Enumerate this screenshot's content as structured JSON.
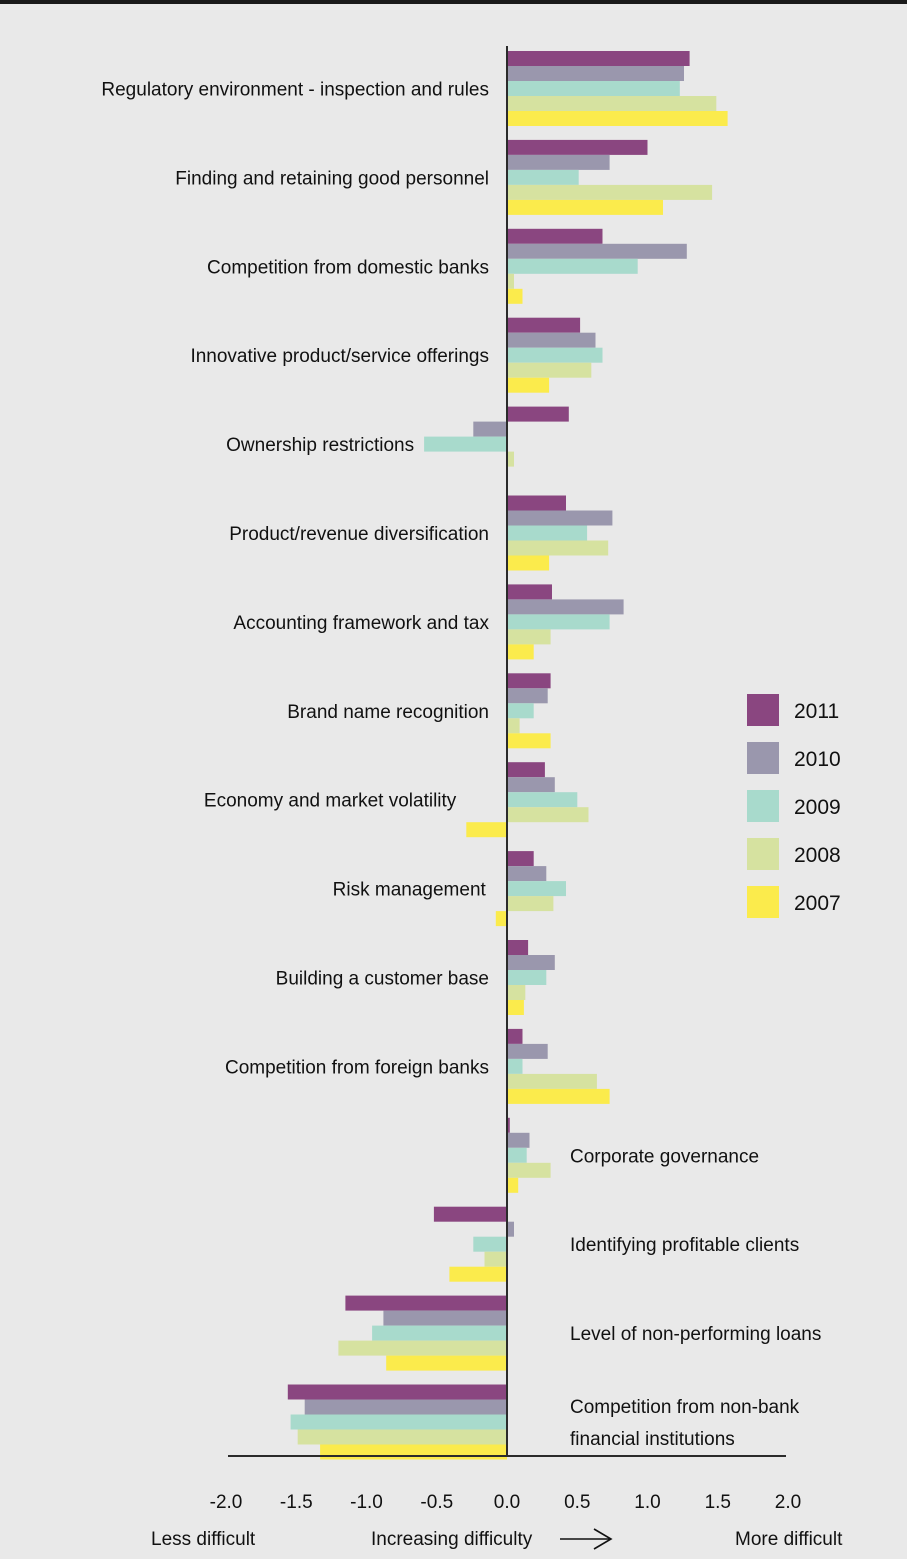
{
  "chart_data": {
    "type": "bar",
    "orientation": "horizontal",
    "categories": [
      "Regulatory environment - inspection and rules",
      "Finding and retaining good personnel",
      "Competition from domestic banks",
      "Innovative product/service offerings",
      "Ownership restrictions",
      "Product/revenue diversification",
      "Accounting framework and tax",
      "Brand name recognition",
      "Economy and market volatility",
      "Risk management",
      "Building a customer base",
      "Competition from foreign banks",
      "Corporate governance",
      "Identifying profitable clients",
      "Level of non-performing loans",
      "Competition from non-bank financial institutions"
    ],
    "label_lines": [
      [
        "Regulatory environment - inspection and rules"
      ],
      [
        "Finding and retaining good personnel"
      ],
      [
        "Competition from domestic banks"
      ],
      [
        "Innovative product/service offerings"
      ],
      [
        "Ownership restrictions"
      ],
      [
        "Product/revenue diversification"
      ],
      [
        "Accounting framework and tax"
      ],
      [
        "Brand name recognition"
      ],
      [
        "Economy and market volatility"
      ],
      [
        "Risk management"
      ],
      [
        "Building a customer base"
      ],
      [
        "Competition from foreign banks"
      ],
      [
        "Corporate governance"
      ],
      [
        "Identifying profitable clients"
      ],
      [
        "Level of non-performing loans"
      ],
      [
        "Competition from non-bank",
        "financial institutions"
      ]
    ],
    "label_side": [
      "left",
      "left",
      "left",
      "left",
      "left",
      "left",
      "left",
      "left",
      "left",
      "left",
      "left",
      "left",
      "right",
      "right",
      "right",
      "right"
    ],
    "series": [
      {
        "name": "2011",
        "color": "#8a4680",
        "values": [
          1.3,
          1.0,
          0.68,
          0.52,
          0.44,
          0.42,
          0.32,
          0.31,
          0.27,
          0.19,
          0.15,
          0.11,
          0.02,
          -0.52,
          -1.15,
          -1.56
        ]
      },
      {
        "name": "2010",
        "color": "#9a97ad",
        "values": [
          1.26,
          0.73,
          1.28,
          0.63,
          -0.24,
          0.75,
          0.83,
          0.29,
          0.34,
          0.28,
          0.34,
          0.29,
          0.16,
          0.05,
          -0.88,
          -1.44
        ]
      },
      {
        "name": "2009",
        "color": "#a8dacc",
        "values": [
          1.23,
          0.51,
          0.93,
          0.68,
          -0.59,
          0.57,
          0.73,
          0.19,
          0.5,
          0.42,
          0.28,
          0.11,
          0.14,
          -0.24,
          -0.96,
          -1.54
        ]
      },
      {
        "name": "2008",
        "color": "#d6e2a0",
        "values": [
          1.49,
          1.46,
          0.05,
          0.6,
          0.05,
          0.72,
          0.31,
          0.09,
          0.58,
          0.33,
          0.13,
          0.64,
          0.31,
          -0.16,
          -1.2,
          -1.49
        ]
      },
      {
        "name": "2007",
        "color": "#fbeb4c",
        "values": [
          1.57,
          1.11,
          0.11,
          0.3,
          0.0,
          0.3,
          0.19,
          0.31,
          -0.29,
          -0.08,
          0.12,
          0.73,
          0.08,
          -0.41,
          -0.86,
          -1.33
        ]
      }
    ],
    "xlim": [
      -2.0,
      2.0
    ],
    "ticks": [
      {
        "value": -2.0,
        "label": "-2.0"
      },
      {
        "value": -1.5,
        "label": "-1.5"
      },
      {
        "value": -1.0,
        "label": "-1.0"
      },
      {
        "value": -0.5,
        "label": "-0.5"
      },
      {
        "value": 0.0,
        "label": "0.0"
      },
      {
        "value": 0.5,
        "label": "0.5"
      },
      {
        "value": 1.0,
        "label": "1.0"
      },
      {
        "value": 1.5,
        "label": "1.5"
      },
      {
        "value": 2.0,
        "label": "2.0"
      }
    ],
    "legend_placement": "right",
    "grid": false,
    "footer": {
      "left": "Less difficult",
      "center": "Increasing difficulty",
      "right": "More difficult"
    }
  }
}
